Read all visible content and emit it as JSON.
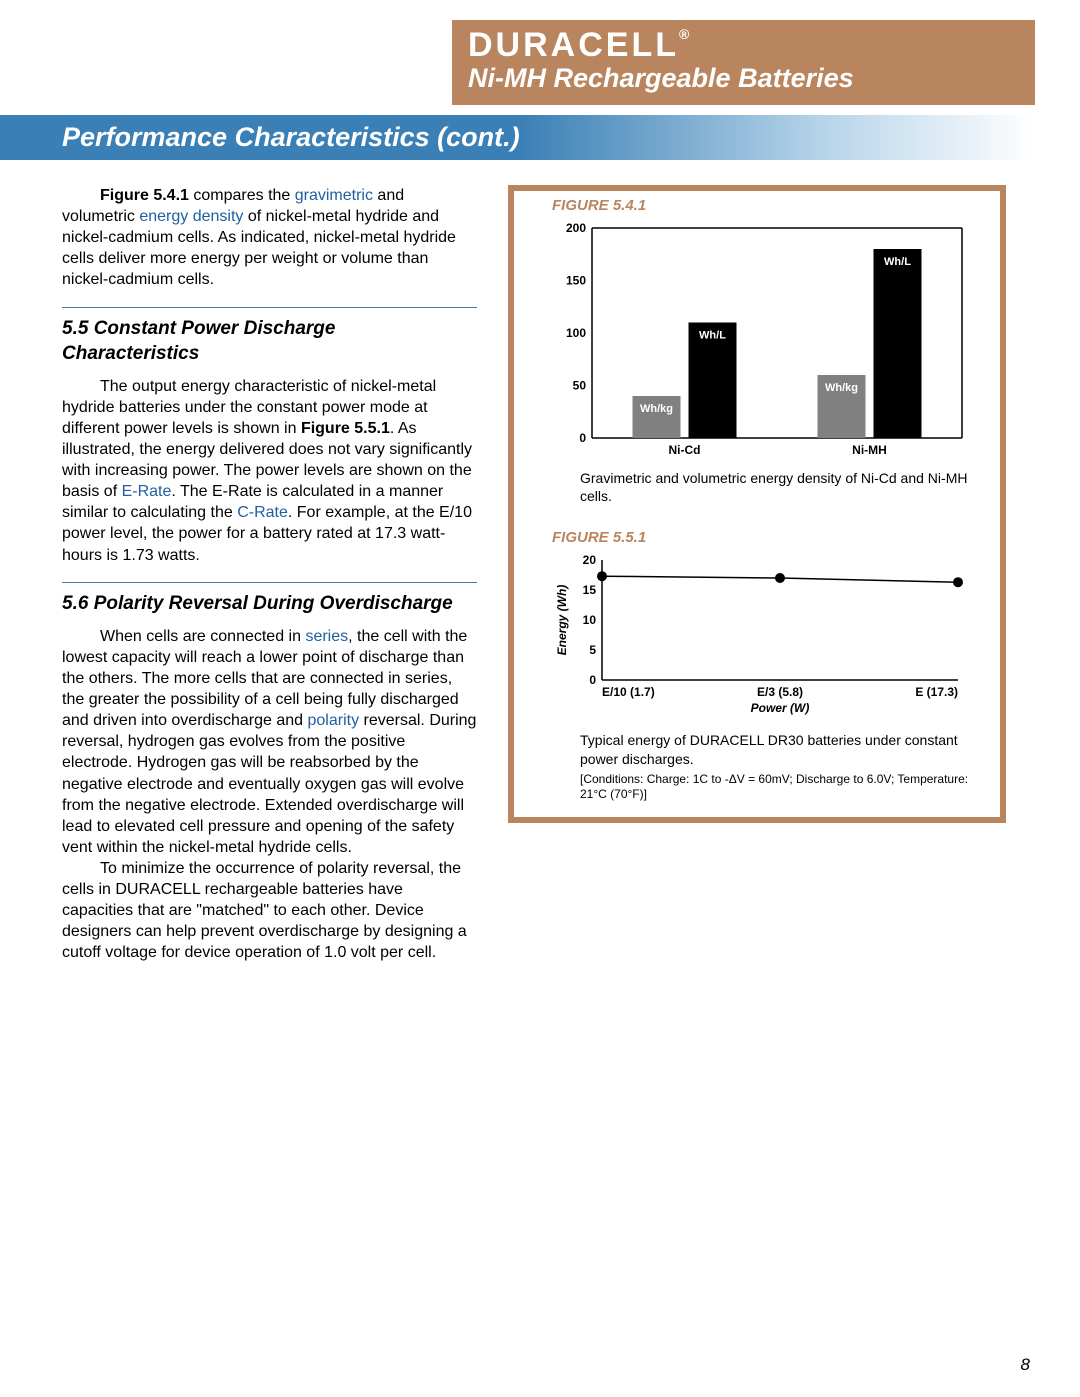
{
  "header": {
    "logo": "DURACELL",
    "logo_reg": "®",
    "subtitle": "Ni-MH Rechargeable Batteries",
    "brand_color": "#b8855f",
    "text_color": "#ffffff"
  },
  "banner": {
    "title": "Performance Characteristics (cont.)",
    "gradient_from": "#3a7fb5",
    "gradient_to": "#ffffff"
  },
  "link_color": "#2060a0",
  "intro": {
    "lead_bold": "Figure 5.4.1",
    "lead_rest": " compares the ",
    "link1": "gravimetric",
    "mid": " and volumetric ",
    "link2": "energy density",
    "tail": " of nickel-metal hydride and nickel-cadmium cells.  As indicated, nickel-metal hydride cells deliver more energy per weight or volume than nickel-cadmium cells."
  },
  "sec55": {
    "heading": "5.5  Constant Power Discharge Characteristics",
    "p1a": "The output energy characteristic of nickel-metal hydride batteries under the constant power mode at different power levels is shown in ",
    "p1b": "Figure 5.5.1",
    "p1c": ". As illustrated, the energy delivered does not vary significantly with increasing power.  The power levels are shown on the basis of ",
    "link1": "E-Rate",
    "p1d": ".  The E-Rate is calculated in a manner similar to calculating the ",
    "link2": "C-Rate",
    "p1e": ". For example, at the E/10 power level, the power for a battery rated at 17.3 watt-hours is 1.73 watts."
  },
  "sec56": {
    "heading": "5.6  Polarity Reversal During Overdischarge",
    "p1a": "When cells are connected in ",
    "link1": "series",
    "p1b": ", the cell with the lowest capacity will reach a lower point of discharge than the others.  The more cells that are connected in series, the greater the possibility of a cell being fully discharged and driven into overdischarge and ",
    "link2": "polarity",
    "p1c": " reversal.  During reversal, hydrogen gas evolves from the positive electrode.  Hydrogen gas will be reabsorbed by the negative electrode and eventually oxygen gas will evolve from the negative electrode.  Extended overdischarge will lead to elevated cell pressure and opening of the safety vent within the nickel-metal hydride cells.",
    "p2": "To minimize the occurrence of polarity reversal, the cells in DURACELL rechargeable batteries have capacities that are \"matched\" to each other.  Device designers can help prevent overdischarge by designing a cutoff voltage for device operation of 1.0 volt per cell."
  },
  "fig541": {
    "label": "FIGURE 5.4.1",
    "type": "bar",
    "ylim": [
      0,
      200
    ],
    "ytick_step": 50,
    "yticks": [
      "0",
      "50",
      "100",
      "150",
      "200"
    ],
    "categories": [
      "Ni-Cd",
      "Ni-MH"
    ],
    "series": [
      {
        "name": "Wh/kg",
        "color": "#808080",
        "values": [
          40,
          60
        ]
      },
      {
        "name": "Wh/L",
        "color": "#000000",
        "values": [
          110,
          180
        ]
      }
    ],
    "label_text_color": "#ffffff",
    "axis_color": "#000000",
    "caption": "Gravimetric and volumetric energy density of Ni-Cd and Ni-MH cells.",
    "font_size_axis": 12,
    "font_size_label": 11
  },
  "fig551": {
    "label": "FIGURE 5.5.1",
    "type": "line",
    "ylim": [
      0,
      20
    ],
    "ytick_step": 5,
    "yticks": [
      "0",
      "5",
      "10",
      "15",
      "20"
    ],
    "xticks": [
      "E/10 (1.7)",
      "E/3 (5.8)",
      "E (17.3)"
    ],
    "xlabel": "Power (W)",
    "ylabel": "Energy (Wh)",
    "data": [
      17.3,
      17.0,
      16.3
    ],
    "line_color": "#000000",
    "marker": "circle",
    "marker_size": 5,
    "caption": "Typical energy of DURACELL DR30 batteries under constant power discharges.",
    "conditions": "[Conditions: Charge: 1C to -ΔV = 60mV; Discharge to 6.0V; Temperature: 21°C (70°F)]",
    "font_size_axis": 12
  },
  "page_number": "8"
}
